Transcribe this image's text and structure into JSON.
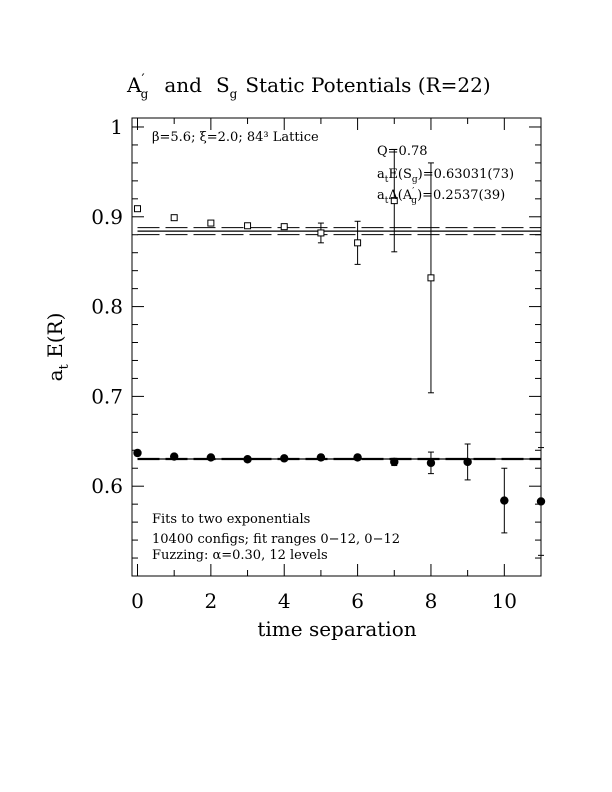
{
  "chart_data": {
    "type": "scatter",
    "title": {
      "part1_base": "A",
      "part1_sup": "′",
      "part1_sub": "g",
      "part2": "and",
      "part3_base": "S",
      "part3_sub": "g",
      "part4": "Static Potentials (R=22)"
    },
    "xlabel": "time separation",
    "ylabel": "a",
    "ylabel_sub": "t",
    "ylabel_rest": " E(R)",
    "xlim": [
      -0.15,
      11.0
    ],
    "ylim": [
      0.5,
      1.01
    ],
    "xticks": [
      0,
      2,
      4,
      6,
      8,
      10
    ],
    "xtick_labels": [
      "0",
      "2",
      "4",
      "6",
      "8",
      "10"
    ],
    "yticks": [
      0.6,
      0.7,
      0.8,
      0.9,
      1.0
    ],
    "ytick_labels": [
      "0.6",
      "0.7",
      "0.8",
      "0.9",
      "1"
    ],
    "annotations": {
      "lattice": "β=5.6; ξ=2.0; 84³ Lattice",
      "q": "Q=0.78",
      "fit_sg": "a",
      "fit_sg_sub": "t",
      "fit_sg_mid": "E(S",
      "fit_sg_sub2": "g",
      "fit_sg_rest": ")=0.63031(73)",
      "fit_ag": "a",
      "fit_ag_sub": "t",
      "fit_ag_mid": "Δ(A",
      "fit_ag_sup2": "′",
      "fit_ag_sub2": "g",
      "fit_ag_rest": ")=0.2537(39)",
      "fits": "Fits to two exponentials",
      "configs": "10400 configs; fit ranges 0−12, 0−12",
      "fuzzing": "Fuzzing: α=0.30, 12 levels"
    },
    "fit_lines": {
      "sg": {
        "center": 0.6303,
        "band": [
          0.6296,
          0.631
        ],
        "x_start": 0
      },
      "ag": {
        "center": 0.884,
        "band": [
          0.8801,
          0.8879
        ],
        "x_start": 0
      }
    },
    "series": [
      {
        "name": "S_g",
        "marker": "filled-circle",
        "points": [
          {
            "x": 0,
            "y": 0.637,
            "err": 0.003
          },
          {
            "x": 1,
            "y": 0.633,
            "err": 0.002
          },
          {
            "x": 2,
            "y": 0.632,
            "err": 0.002
          },
          {
            "x": 3,
            "y": 0.63,
            "err": 0.002
          },
          {
            "x": 4,
            "y": 0.631,
            "err": 0.002
          },
          {
            "x": 5,
            "y": 0.632,
            "err": 0.003
          },
          {
            "x": 6,
            "y": 0.632,
            "err": 0.003
          },
          {
            "x": 7,
            "y": 0.627,
            "err": 0.004
          },
          {
            "x": 8,
            "y": 0.626,
            "err": 0.012
          },
          {
            "x": 9,
            "y": 0.627,
            "err": 0.02
          },
          {
            "x": 10,
            "y": 0.584,
            "err": 0.036
          },
          {
            "x": 11,
            "y": 0.583,
            "err": 0.06
          }
        ]
      },
      {
        "name": "A'_g",
        "marker": "open-square",
        "points": [
          {
            "x": 0,
            "y": 0.909,
            "err": 0.002
          },
          {
            "x": 1,
            "y": 0.899,
            "err": 0.002
          },
          {
            "x": 2,
            "y": 0.893,
            "err": 0.002
          },
          {
            "x": 3,
            "y": 0.89,
            "err": 0.002
          },
          {
            "x": 4,
            "y": 0.889,
            "err": 0.003
          },
          {
            "x": 5,
            "y": 0.882,
            "err": 0.011
          },
          {
            "x": 6,
            "y": 0.871,
            "err": 0.024
          },
          {
            "x": 7,
            "y": 0.918,
            "err": 0.057
          },
          {
            "x": 8,
            "y": 0.832,
            "err": 0.128
          }
        ]
      }
    ]
  }
}
